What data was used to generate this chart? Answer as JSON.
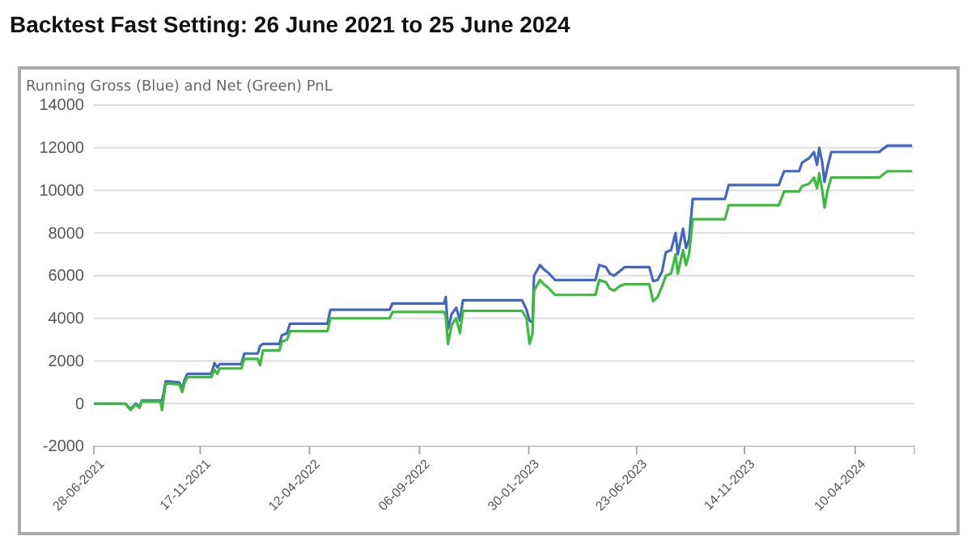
{
  "chart_data": {
    "type": "line",
    "title": "Backtest Fast Setting: 26 June 2021 to 25 June 2024",
    "subtitle": "Running Gross (Blue) and Net (Green) PnL",
    "x": [
      "2021-06-28",
      "2021-08-09",
      "2021-08-16",
      "2021-08-23",
      "2021-08-28",
      "2021-08-31",
      "2021-09-25",
      "2021-09-27",
      "2021-10-02",
      "2021-10-20",
      "2021-10-24",
      "2021-10-27",
      "2021-10-31",
      "2021-12-02",
      "2021-12-06",
      "2021-12-10",
      "2021-12-13",
      "2022-01-11",
      "2022-01-15",
      "2022-02-02",
      "2022-02-05",
      "2022-02-09",
      "2022-03-03",
      "2022-03-06",
      "2022-03-13",
      "2022-03-17",
      "2022-05-06",
      "2022-05-10",
      "2022-07-28",
      "2022-08-01",
      "2022-10-09",
      "2022-10-11",
      "2022-10-14",
      "2022-10-19",
      "2022-10-25",
      "2022-10-30",
      "2022-11-03",
      "2023-01-21",
      "2023-01-27",
      "2023-01-31",
      "2023-02-04",
      "2023-02-06",
      "2023-02-14",
      "2023-02-19",
      "2023-02-26",
      "2023-03-06",
      "2023-04-29",
      "2023-05-04",
      "2023-05-13",
      "2023-05-18",
      "2023-05-24",
      "2023-05-31",
      "2023-06-07",
      "2023-07-10",
      "2023-07-15",
      "2023-07-21",
      "2023-07-27",
      "2023-08-01",
      "2023-08-08",
      "2023-08-14",
      "2023-08-17",
      "2023-08-24",
      "2023-08-28",
      "2023-09-01",
      "2023-09-06",
      "2023-10-19",
      "2023-10-24",
      "2023-12-30",
      "2024-01-06",
      "2024-01-26",
      "2024-01-30",
      "2024-02-08",
      "2024-02-15",
      "2024-02-19",
      "2024-02-22",
      "2024-02-26",
      "2024-02-29",
      "2024-03-04",
      "2024-03-09",
      "2024-05-12",
      "2024-05-23",
      "2024-06-25"
    ],
    "series": [
      {
        "color": "#4466c0",
        "values": [
          0,
          0,
          -250,
          0,
          -150,
          150,
          150,
          100,
          1050,
          1000,
          700,
          1100,
          1400,
          1400,
          1900,
          1700,
          1850,
          1850,
          2350,
          2350,
          2700,
          2800,
          2800,
          3200,
          3300,
          3750,
          3750,
          4400,
          4400,
          4700,
          4700,
          5000,
          3500,
          4200,
          4500,
          3900,
          4850,
          4850,
          4400,
          3900,
          3800,
          6000,
          6500,
          6300,
          6100,
          5800,
          5800,
          6500,
          6400,
          6100,
          6000,
          6200,
          6400,
          6400,
          5750,
          5800,
          6200,
          7100,
          7200,
          8000,
          7000,
          8200,
          7300,
          7700,
          9600,
          9600,
          10250,
          10250,
          10900,
          10900,
          11300,
          11500,
          11800,
          11200,
          12000,
          11300,
          10400,
          11100,
          11800,
          11800,
          12100,
          12100
        ]
      },
      {
        "color": "#3cbc3c",
        "values": [
          0,
          0,
          -300,
          -50,
          -200,
          100,
          100,
          -300,
          950,
          900,
          550,
          950,
          1250,
          1250,
          1600,
          1400,
          1650,
          1650,
          2100,
          2100,
          1800,
          2500,
          2500,
          2900,
          3000,
          3400,
          3400,
          4000,
          4000,
          4300,
          4300,
          4100,
          2800,
          3700,
          4000,
          3300,
          4350,
          4350,
          4000,
          2800,
          3300,
          5300,
          5800,
          5600,
          5400,
          5100,
          5100,
          5800,
          5700,
          5400,
          5300,
          5500,
          5600,
          5600,
          4800,
          5000,
          5500,
          6000,
          6100,
          7000,
          6100,
          7200,
          6500,
          7000,
          8650,
          8650,
          9300,
          9300,
          9950,
          9950,
          10200,
          10300,
          10600,
          10100,
          10800,
          10000,
          9200,
          10000,
          10600,
          10600,
          10900,
          10900
        ]
      }
    ],
    "xlim": [
      "2021-06-28",
      "2024-06-28"
    ],
    "xticks": [
      {
        "value": "2021-06-28",
        "label": "28-06-2021"
      },
      {
        "value": "2021-11-17",
        "label": "17-11-2021"
      },
      {
        "value": "2022-04-12",
        "label": "12-04-2022"
      },
      {
        "value": "2022-09-06",
        "label": "06-09-2022"
      },
      {
        "value": "2023-01-30",
        "label": "30-01-2023"
      },
      {
        "value": "2023-06-23",
        "label": "23-06-2023"
      },
      {
        "value": "2023-11-14",
        "label": "14-11-2023"
      },
      {
        "value": "2024-04-10",
        "label": "10-04-2024"
      }
    ],
    "ylim": [
      -2000,
      14000
    ],
    "yticks": [
      -2000,
      0,
      2000,
      4000,
      6000,
      8000,
      10000,
      12000,
      14000
    ],
    "grid": "y"
  }
}
